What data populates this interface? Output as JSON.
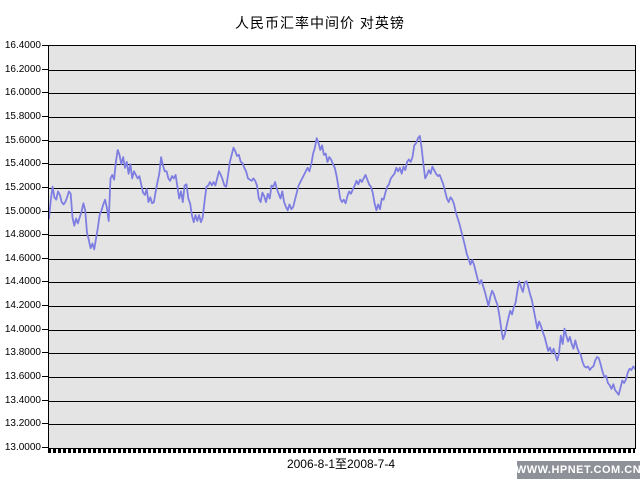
{
  "title": "人民币汇率中间价 对英镑",
  "x_axis_label": "2006-8-1至2008-7-4",
  "watermark": "WWW.HPNET.COM.CN",
  "colors": {
    "page_bg": "#ffffff",
    "plot_bg": "#e4e4e4",
    "gridline": "#000000",
    "line": "#7e7ee2",
    "text": "#000000",
    "watermark_bg": "#8e9298",
    "watermark_text": "#ffffff"
  },
  "chart_data": {
    "type": "line",
    "title": "人民币汇率中间价 对英镑",
    "series_name": "人民币汇率中间价(对英镑)",
    "date_range": {
      "start": "2006-8-1",
      "end": "2008-7-4"
    },
    "xlabel": "2006-8-1至2008-7-4",
    "ylabel": "",
    "ylim": [
      13.0,
      16.4
    ],
    "y_tick_step": 0.2,
    "y_tick_labels": [
      "16.4000",
      "16.2000",
      "16.0000",
      "15.8000",
      "15.6000",
      "15.4000",
      "15.2000",
      "15.0000",
      "14.8000",
      "14.6000",
      "14.4000",
      "14.2000",
      "14.0000",
      "13.8000",
      "13.6000",
      "13.4000",
      "13.2000",
      "13.0000"
    ],
    "grid": "horizontal",
    "legend": "none",
    "line_color": "#7e7ee2",
    "values": [
      14.94,
      15.1,
      15.21,
      15.12,
      15.1,
      15.17,
      15.14,
      15.08,
      15.06,
      15.08,
      15.12,
      15.17,
      15.15,
      14.95,
      14.88,
      14.94,
      14.9,
      14.95,
      15.0,
      15.07,
      15.01,
      14.82,
      14.76,
      14.69,
      14.73,
      14.68,
      14.77,
      14.86,
      14.97,
      15.01,
      15.06,
      15.1,
      15.03,
      14.92,
      15.28,
      15.31,
      15.27,
      15.42,
      15.52,
      15.48,
      15.4,
      15.46,
      15.37,
      15.42,
      15.32,
      15.4,
      15.28,
      15.34,
      15.31,
      15.28,
      15.3,
      15.23,
      15.16,
      15.14,
      15.19,
      15.08,
      15.12,
      15.07,
      15.08,
      15.17,
      15.25,
      15.32,
      15.46,
      15.39,
      15.34,
      15.34,
      15.28,
      15.26,
      15.3,
      15.28,
      15.31,
      15.21,
      15.11,
      15.17,
      15.08,
      15.22,
      15.23,
      15.11,
      15.07,
      14.97,
      14.91,
      14.97,
      14.92,
      14.97,
      14.91,
      14.95,
      15.08,
      15.21,
      15.22,
      15.25,
      15.22,
      15.25,
      15.22,
      15.28,
      15.34,
      15.31,
      15.27,
      15.22,
      15.21,
      15.31,
      15.42,
      15.48,
      15.54,
      15.51,
      15.47,
      15.48,
      15.42,
      15.41,
      15.37,
      15.34,
      15.28,
      15.27,
      15.26,
      15.28,
      15.26,
      15.22,
      15.11,
      15.08,
      15.16,
      15.13,
      15.08,
      15.15,
      15.11,
      15.22,
      15.21,
      15.25,
      15.19,
      15.15,
      15.11,
      15.17,
      15.08,
      15.04,
      15.01,
      15.06,
      15.02,
      15.04,
      15.1,
      15.16,
      15.22,
      15.25,
      15.28,
      15.31,
      15.34,
      15.37,
      15.34,
      15.4,
      15.49,
      15.54,
      15.62,
      15.58,
      15.52,
      15.56,
      15.48,
      15.49,
      15.42,
      15.46,
      15.44,
      15.4,
      15.37,
      15.3,
      15.21,
      15.11,
      15.08,
      15.1,
      15.07,
      15.13,
      15.17,
      15.15,
      15.19,
      15.22,
      15.26,
      15.23,
      15.27,
      15.25,
      15.28,
      15.31,
      15.27,
      15.23,
      15.21,
      15.16,
      15.07,
      15.01,
      15.06,
      15.02,
      15.11,
      15.1,
      15.16,
      15.21,
      15.23,
      15.28,
      15.3,
      15.32,
      15.37,
      15.34,
      15.37,
      15.32,
      15.38,
      15.35,
      15.42,
      15.44,
      15.42,
      15.46,
      15.56,
      15.58,
      15.62,
      15.64,
      15.54,
      15.4,
      15.28,
      15.31,
      15.35,
      15.32,
      15.38,
      15.35,
      15.32,
      15.3,
      15.31,
      15.27,
      15.23,
      15.17,
      15.11,
      15.08,
      15.12,
      15.1,
      15.06,
      14.99,
      14.94,
      14.89,
      14.83,
      14.77,
      14.71,
      14.64,
      14.6,
      14.55,
      14.59,
      14.55,
      14.49,
      14.43,
      14.39,
      14.42,
      14.37,
      14.32,
      14.26,
      14.2,
      14.28,
      14.33,
      14.3,
      14.25,
      14.21,
      14.12,
      14.01,
      13.92,
      13.96,
      14.03,
      14.1,
      14.16,
      14.13,
      14.19,
      14.23,
      14.33,
      14.41,
      14.36,
      14.32,
      14.4,
      14.41,
      14.36,
      14.3,
      14.25,
      14.17,
      14.09,
      14.01,
      14.07,
      14.03,
      13.98,
      13.94,
      13.88,
      13.82,
      13.85,
      13.8,
      13.84,
      13.79,
      13.74,
      13.8,
      13.95,
      13.88,
      14.01,
      13.95,
      13.9,
      13.94,
      13.88,
      13.84,
      13.91,
      13.85,
      13.81,
      13.79,
      13.73,
      13.69,
      13.68,
      13.69,
      13.66,
      13.68,
      13.69,
      13.74,
      13.77,
      13.76,
      13.71,
      13.65,
      13.6,
      13.61,
      13.55,
      13.53,
      13.5,
      13.54,
      13.49,
      13.47,
      13.45,
      13.51,
      13.57,
      13.55,
      13.58,
      13.64,
      13.67,
      13.66,
      13.69,
      13.67
    ]
  }
}
